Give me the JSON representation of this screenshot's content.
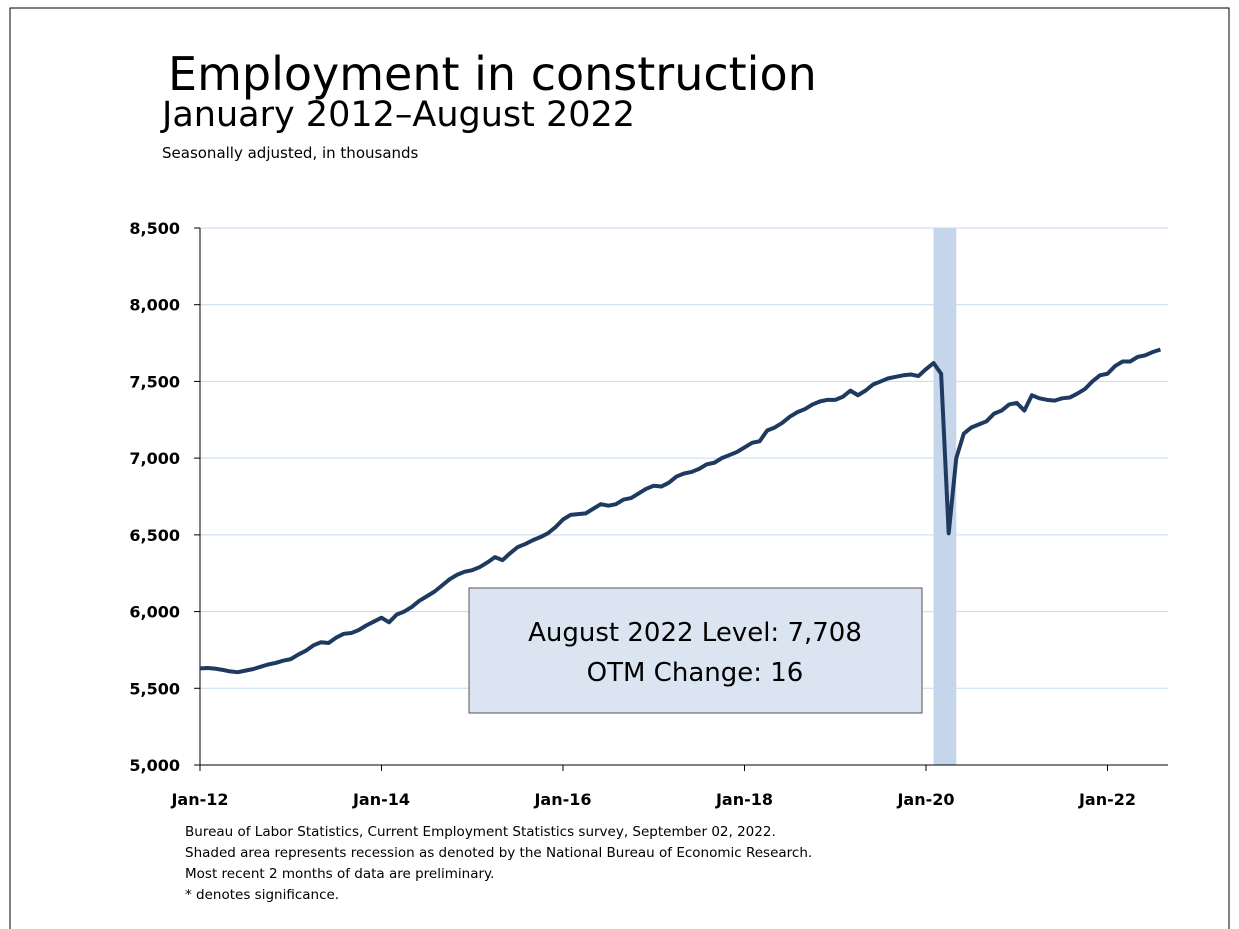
{
  "chart_data": {
    "type": "line",
    "title": "Employment in construction",
    "subtitle": "January 2012–August 2022",
    "units_note": "Seasonally adjusted, in thousands",
    "annotation": [
      "August 2022 Level: 7,708",
      "OTM Change: 16"
    ],
    "footnotes": [
      "Bureau of Labor Statistics, Current Employment Statistics survey, September 02, 2022.",
      "Shaded area represents recession as denoted by the National Bureau of Economic Research.",
      "Most recent 2 months of data are preliminary.",
      "* denotes significance."
    ],
    "color": "#1f3a60",
    "recession": [
      "2020-02",
      "2020-04"
    ],
    "grid": true,
    "xlim": [
      "2012-01",
      "2022-09"
    ],
    "xticks": [
      {
        "value": "2012-01",
        "label": "Jan-12"
      },
      {
        "value": "2014-01",
        "label": "Jan-14"
      },
      {
        "value": "2016-01",
        "label": "Jan-16"
      },
      {
        "value": "2018-01",
        "label": "Jan-18"
      },
      {
        "value": "2020-01",
        "label": "Jan-20"
      },
      {
        "value": "2022-01",
        "label": "Jan-22"
      }
    ],
    "ylim": [
      5000,
      8500
    ],
    "yticks": [
      {
        "value": 5000,
        "label": "5,000"
      },
      {
        "value": 5500,
        "label": "5,500"
      },
      {
        "value": 6000,
        "label": "6,000"
      },
      {
        "value": 6500,
        "label": "6,500"
      },
      {
        "value": 7000,
        "label": "7,000"
      },
      {
        "value": 7500,
        "label": "7,500"
      },
      {
        "value": 8000,
        "label": "8,000"
      },
      {
        "value": 8500,
        "label": "8,500"
      }
    ],
    "x": [
      "2012-01",
      "2012-02",
      "2012-03",
      "2012-04",
      "2012-05",
      "2012-06",
      "2012-07",
      "2012-08",
      "2012-09",
      "2012-10",
      "2012-11",
      "2012-12",
      "2013-01",
      "2013-02",
      "2013-03",
      "2013-04",
      "2013-05",
      "2013-06",
      "2013-07",
      "2013-08",
      "2013-09",
      "2013-10",
      "2013-11",
      "2013-12",
      "2014-01",
      "2014-02",
      "2014-03",
      "2014-04",
      "2014-05",
      "2014-06",
      "2014-07",
      "2014-08",
      "2014-09",
      "2014-10",
      "2014-11",
      "2014-12",
      "2015-01",
      "2015-02",
      "2015-03",
      "2015-04",
      "2015-05",
      "2015-06",
      "2015-07",
      "2015-08",
      "2015-09",
      "2015-10",
      "2015-11",
      "2015-12",
      "2016-01",
      "2016-02",
      "2016-03",
      "2016-04",
      "2016-05",
      "2016-06",
      "2016-07",
      "2016-08",
      "2016-09",
      "2016-10",
      "2016-11",
      "2016-12",
      "2017-01",
      "2017-02",
      "2017-03",
      "2017-04",
      "2017-05",
      "2017-06",
      "2017-07",
      "2017-08",
      "2017-09",
      "2017-10",
      "2017-11",
      "2017-12",
      "2018-01",
      "2018-02",
      "2018-03",
      "2018-04",
      "2018-05",
      "2018-06",
      "2018-07",
      "2018-08",
      "2018-09",
      "2018-10",
      "2018-11",
      "2018-12",
      "2019-01",
      "2019-02",
      "2019-03",
      "2019-04",
      "2019-05",
      "2019-06",
      "2019-07",
      "2019-08",
      "2019-09",
      "2019-10",
      "2019-11",
      "2019-12",
      "2020-01",
      "2020-02",
      "2020-03",
      "2020-04",
      "2020-05",
      "2020-06",
      "2020-07",
      "2020-08",
      "2020-09",
      "2020-10",
      "2020-11",
      "2020-12",
      "2021-01",
      "2021-02",
      "2021-03",
      "2021-04",
      "2021-05",
      "2021-06",
      "2021-07",
      "2021-08",
      "2021-09",
      "2021-10",
      "2021-11",
      "2021-12",
      "2022-01",
      "2022-02",
      "2022-03",
      "2022-04",
      "2022-05",
      "2022-06",
      "2022-07",
      "2022-08"
    ],
    "values": [
      5630,
      5632,
      5628,
      5620,
      5610,
      5605,
      5615,
      5625,
      5640,
      5655,
      5665,
      5680,
      5690,
      5720,
      5745,
      5780,
      5800,
      5795,
      5830,
      5855,
      5860,
      5880,
      5910,
      5935,
      5960,
      5930,
      5980,
      6000,
      6030,
      6070,
      6100,
      6130,
      6170,
      6210,
      6240,
      6260,
      6270,
      6290,
      6320,
      6355,
      6335,
      6380,
      6420,
      6440,
      6465,
      6485,
      6510,
      6550,
      6600,
      6630,
      6635,
      6640,
      6670,
      6700,
      6690,
      6700,
      6730,
      6740,
      6770,
      6800,
      6820,
      6815,
      6840,
      6880,
      6900,
      6910,
      6930,
      6960,
      6970,
      7000,
      7020,
      7040,
      7070,
      7100,
      7110,
      7180,
      7200,
      7230,
      7270,
      7300,
      7320,
      7350,
      7370,
      7380,
      7380,
      7400,
      7440,
      7410,
      7440,
      7480,
      7500,
      7520,
      7530,
      7540,
      7545,
      7535,
      7580,
      7620,
      7550,
      6510,
      7000,
      7160,
      7200,
      7220,
      7240,
      7290,
      7310,
      7350,
      7360,
      7310,
      7410,
      7390,
      7380,
      7375,
      7390,
      7395,
      7420,
      7450,
      7500,
      7540,
      7550,
      7600,
      7630,
      7630,
      7660,
      7670,
      7692,
      7708
    ]
  }
}
